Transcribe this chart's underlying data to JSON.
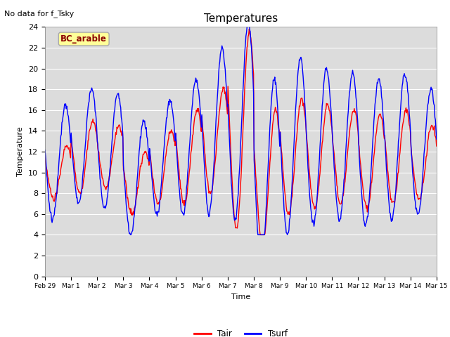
{
  "title": "Temperatures",
  "xlabel": "Time",
  "ylabel": "Temperature",
  "note": "No data for f_Tsky",
  "box_label": "BC_arable",
  "ylim": [
    0,
    24
  ],
  "yticks": [
    0,
    2,
    4,
    6,
    8,
    10,
    12,
    14,
    16,
    18,
    20,
    22,
    24
  ],
  "line_tair_color": "red",
  "line_tsurf_color": "blue",
  "legend_tair": "Tair",
  "legend_tsurf": "Tsurf",
  "bg_color": "#dcdcdc",
  "fig_bg": "#ffffff",
  "n_days": 15,
  "tair_base": [
    10.0,
    11.5,
    11.5,
    9.0,
    10.5,
    11.5,
    13.0,
    14.0,
    9.5,
    11.5,
    11.5,
    11.5,
    11.0,
    11.5,
    11.0
  ],
  "tair_amp": [
    2.5,
    3.5,
    3.0,
    3.0,
    3.5,
    4.5,
    5.0,
    9.5,
    6.5,
    5.5,
    5.0,
    4.5,
    4.5,
    4.5,
    3.5
  ],
  "tsurf_base": [
    11.0,
    12.5,
    12.0,
    9.5,
    11.5,
    12.5,
    14.0,
    15.0,
    10.0,
    12.5,
    12.5,
    12.5,
    12.0,
    12.5,
    12.0
  ],
  "tsurf_amp": [
    5.5,
    5.5,
    5.5,
    5.5,
    5.5,
    6.5,
    8.0,
    9.5,
    9.0,
    8.5,
    7.5,
    7.0,
    7.0,
    7.0,
    6.0
  ]
}
